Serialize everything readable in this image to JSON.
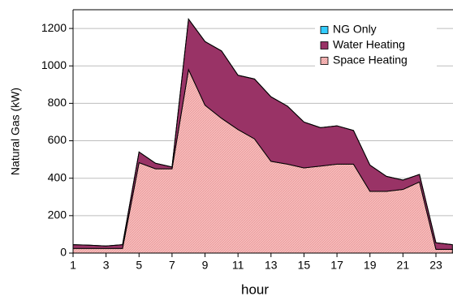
{
  "chart_data": {
    "type": "stacked_area",
    "x": [
      1,
      2,
      3,
      4,
      5,
      6,
      7,
      8,
      9,
      10,
      11,
      12,
      13,
      14,
      15,
      16,
      17,
      18,
      19,
      20,
      21,
      22,
      23,
      24
    ],
    "series": [
      {
        "name": "Space Heating",
        "color": "#f2a9a9",
        "values": [
          25,
          25,
          25,
          25,
          483,
          450,
          450,
          980,
          790,
          720,
          660,
          610,
          490,
          475,
          455,
          465,
          475,
          475,
          330,
          330,
          340,
          380,
          20,
          20
        ]
      },
      {
        "name": "Water Heating",
        "color": "#993366",
        "values": [
          20,
          17,
          13,
          20,
          57,
          30,
          10,
          270,
          340,
          360,
          290,
          320,
          345,
          310,
          245,
          205,
          205,
          180,
          140,
          80,
          50,
          40,
          35,
          25
        ]
      },
      {
        "name": "NG Only",
        "color": "#33ccff",
        "values": [
          0,
          0,
          0,
          0,
          0,
          0,
          0,
          0,
          0,
          0,
          0,
          0,
          0,
          0,
          0,
          0,
          0,
          0,
          0,
          0,
          0,
          0,
          0,
          0
        ]
      }
    ],
    "xlim": [
      1,
      24
    ],
    "xticks": [
      1,
      3,
      5,
      7,
      9,
      11,
      13,
      15,
      17,
      19,
      21,
      23
    ],
    "ylim": [
      0,
      1300
    ],
    "yticks": [
      0,
      200,
      400,
      600,
      800,
      1000,
      1200
    ],
    "xlabel": "hour",
    "ylabel": "Natural Gas (kW)",
    "grid": true
  }
}
